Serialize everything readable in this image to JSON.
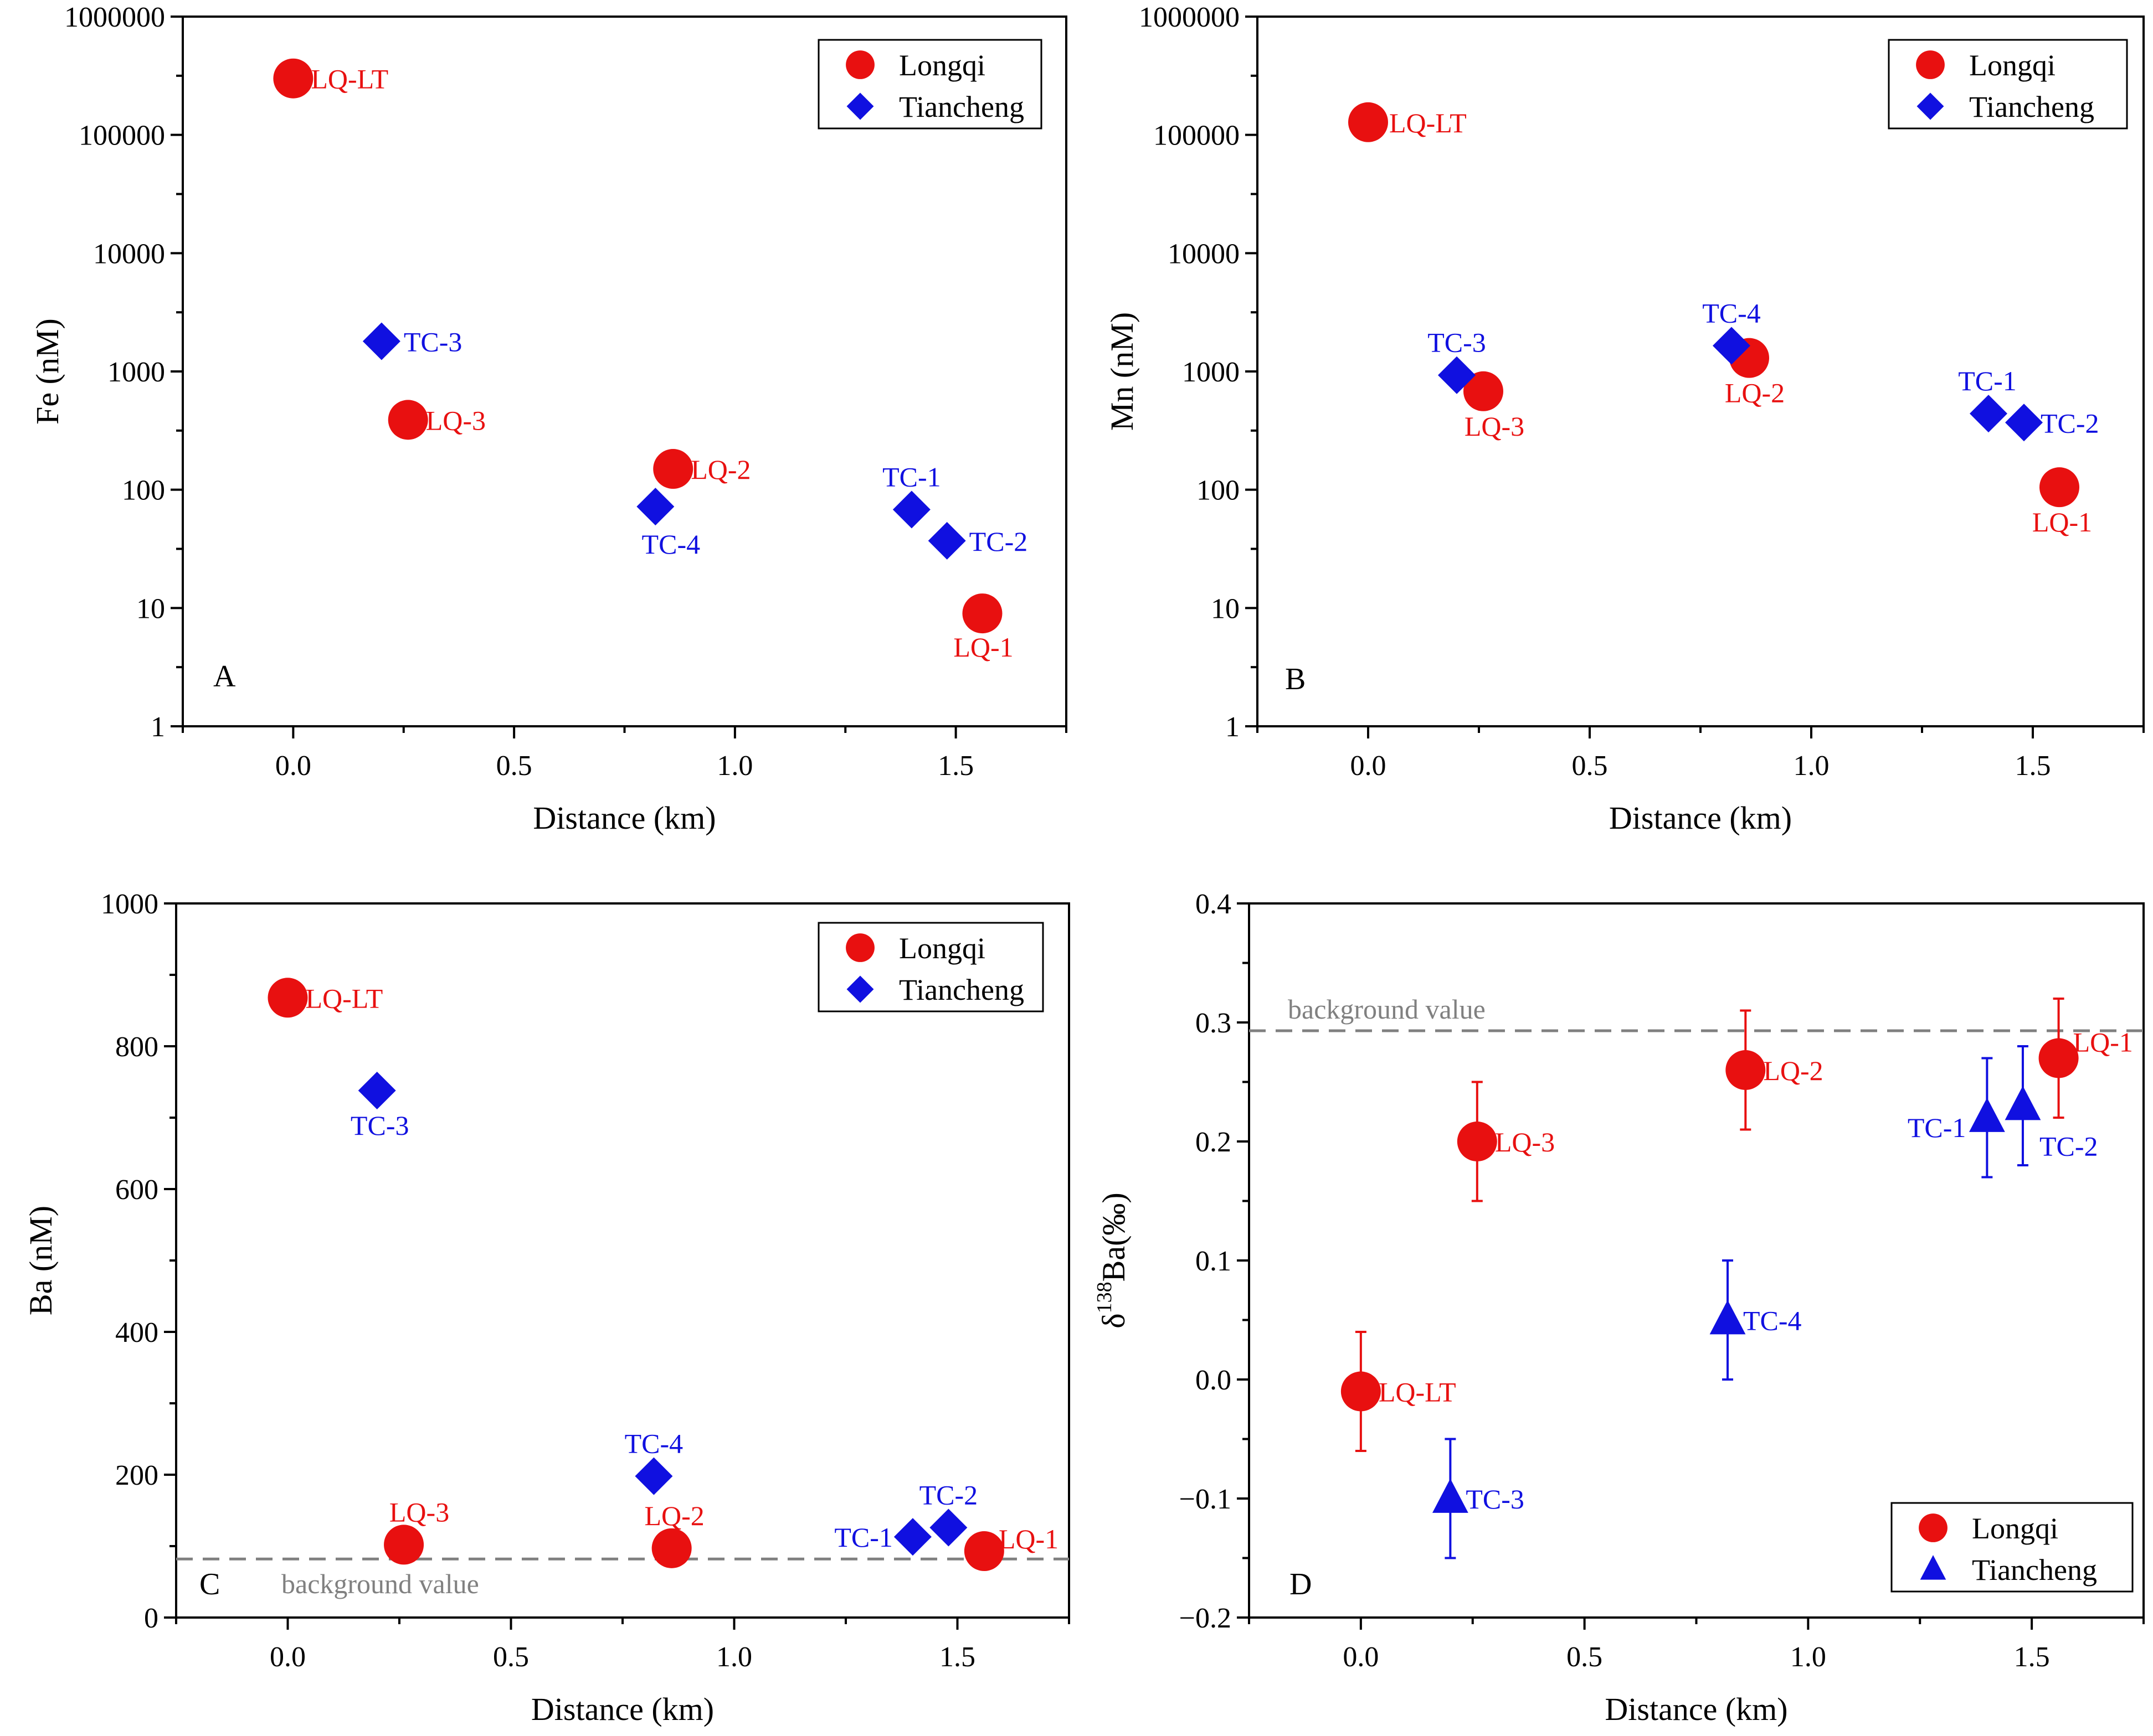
{
  "colors": {
    "longqi": "#e81010",
    "tiancheng": "#1010e0",
    "background_line": "#808080",
    "axis": "#000000"
  },
  "chart_data": [
    {
      "id": "A",
      "type": "scatter",
      "yscale": "log",
      "title": "",
      "panel_label": "A",
      "xlabel": "Distance (km)",
      "ylabel": "Fe (nM)",
      "xlim": [
        -0.25,
        1.75
      ],
      "ylim": [
        1,
        1000000
      ],
      "xticks": [
        "0.0",
        "0.5",
        "1.0",
        "1.5"
      ],
      "yticks": [
        "1",
        "10",
        "100",
        "1000",
        "10000",
        "100000",
        "1000000"
      ],
      "legend": {
        "position": "top-right",
        "items": [
          "Longqi",
          "Tiancheng"
        ]
      },
      "series": [
        {
          "name": "Longqi",
          "marker": "circle",
          "points": [
            {
              "label": "LQ-LT",
              "x": 0.0,
              "y": 300000
            },
            {
              "label": "LQ-3",
              "x": 0.26,
              "y": 390
            },
            {
              "label": "LQ-2",
              "x": 0.86,
              "y": 150
            },
            {
              "label": "LQ-1",
              "x": 1.56,
              "y": 9
            }
          ]
        },
        {
          "name": "Tiancheng",
          "marker": "diamond",
          "points": [
            {
              "label": "TC-3",
              "x": 0.2,
              "y": 1800
            },
            {
              "label": "TC-4",
              "x": 0.82,
              "y": 72
            },
            {
              "label": "TC-1",
              "x": 1.4,
              "y": 68
            },
            {
              "label": "TC-2",
              "x": 1.48,
              "y": 37
            }
          ]
        }
      ]
    },
    {
      "id": "B",
      "type": "scatter",
      "yscale": "log",
      "title": "",
      "panel_label": "B",
      "xlabel": "Distance (km)",
      "ylabel": "Mn (nM)",
      "xlim": [
        -0.25,
        1.75
      ],
      "ylim": [
        1,
        1000000
      ],
      "xticks": [
        "0.0",
        "0.5",
        "1.0",
        "1.5"
      ],
      "yticks": [
        "1",
        "10",
        "100",
        "1000",
        "10000",
        "100000",
        "1000000"
      ],
      "legend": {
        "position": "top-right",
        "items": [
          "Longqi",
          "Tiancheng"
        ]
      },
      "series": [
        {
          "name": "Longqi",
          "marker": "circle",
          "points": [
            {
              "label": "LQ-LT",
              "x": 0.0,
              "y": 128000
            },
            {
              "label": "LQ-3",
              "x": 0.26,
              "y": 680
            },
            {
              "label": "LQ-2",
              "x": 0.86,
              "y": 1300
            },
            {
              "label": "LQ-1",
              "x": 1.56,
              "y": 105
            }
          ]
        },
        {
          "name": "Tiancheng",
          "marker": "diamond",
          "points": [
            {
              "label": "TC-3",
              "x": 0.2,
              "y": 930
            },
            {
              "label": "TC-4",
              "x": 0.82,
              "y": 1650
            },
            {
              "label": "TC-1",
              "x": 1.4,
              "y": 440
            },
            {
              "label": "TC-2",
              "x": 1.48,
              "y": 370
            }
          ]
        }
      ]
    },
    {
      "id": "C",
      "type": "scatter",
      "yscale": "linear",
      "title": "",
      "panel_label": "C",
      "xlabel": "Distance (km)",
      "ylabel": "Ba (nM)",
      "xlim": [
        -0.25,
        1.75
      ],
      "ylim": [
        0,
        1000
      ],
      "xticks": [
        "0.0",
        "0.5",
        "1.0",
        "1.5"
      ],
      "yticks": [
        "0",
        "200",
        "400",
        "600",
        "800",
        "1000"
      ],
      "reference_line": {
        "y": 82,
        "label": "background value"
      },
      "legend": {
        "position": "top-right",
        "items": [
          "Longqi",
          "Tiancheng"
        ]
      },
      "series": [
        {
          "name": "Longqi",
          "marker": "circle",
          "points": [
            {
              "label": "LQ-LT",
              "x": 0.0,
              "y": 868
            },
            {
              "label": "LQ-3",
              "x": 0.26,
              "y": 102
            },
            {
              "label": "LQ-2",
              "x": 0.86,
              "y": 97
            },
            {
              "label": "LQ-1",
              "x": 1.56,
              "y": 93
            }
          ]
        },
        {
          "name": "Tiancheng",
          "marker": "diamond",
          "points": [
            {
              "label": "TC-3",
              "x": 0.2,
              "y": 738
            },
            {
              "label": "TC-4",
              "x": 0.82,
              "y": 198
            },
            {
              "label": "TC-1",
              "x": 1.4,
              "y": 113
            },
            {
              "label": "TC-2",
              "x": 1.48,
              "y": 126
            }
          ]
        }
      ]
    },
    {
      "id": "D",
      "type": "scatter",
      "yscale": "linear",
      "title": "",
      "panel_label": "D",
      "xlabel": "Distance (km)",
      "ylabel_main": "δ",
      "ylabel_sup": "138",
      "ylabel_rest": "Ba(‰)",
      "xlim": [
        -0.25,
        1.75
      ],
      "ylim": [
        -0.2,
        0.4
      ],
      "xticks": [
        "0.0",
        "0.5",
        "1.0",
        "1.5"
      ],
      "yticks": [
        "−0.2",
        "−0.1",
        "0.0",
        "0.1",
        "0.2",
        "0.3",
        "0.4"
      ],
      "reference_line": {
        "y": 0.293,
        "label": "background value"
      },
      "legend": {
        "position": "bottom-right",
        "items": [
          "Longqi",
          "Tiancheng"
        ]
      },
      "series": [
        {
          "name": "Longqi",
          "marker": "circle",
          "points": [
            {
              "label": "LQ-LT",
              "x": 0.0,
              "y": -0.01,
              "err": 0.05
            },
            {
              "label": "LQ-3",
              "x": 0.26,
              "y": 0.2,
              "err": 0.05
            },
            {
              "label": "LQ-2",
              "x": 0.86,
              "y": 0.26,
              "err": 0.05
            },
            {
              "label": "LQ-1",
              "x": 1.56,
              "y": 0.27,
              "err": 0.05
            }
          ]
        },
        {
          "name": "Tiancheng",
          "marker": "triangle",
          "points": [
            {
              "label": "TC-3",
              "x": 0.2,
              "y": -0.1,
              "err": 0.05
            },
            {
              "label": "TC-4",
              "x": 0.82,
              "y": 0.05,
              "err": 0.05
            },
            {
              "label": "TC-1",
              "x": 1.4,
              "y": 0.22,
              "err": 0.05
            },
            {
              "label": "TC-2",
              "x": 1.48,
              "y": 0.23,
              "err": 0.05
            }
          ]
        }
      ]
    }
  ]
}
